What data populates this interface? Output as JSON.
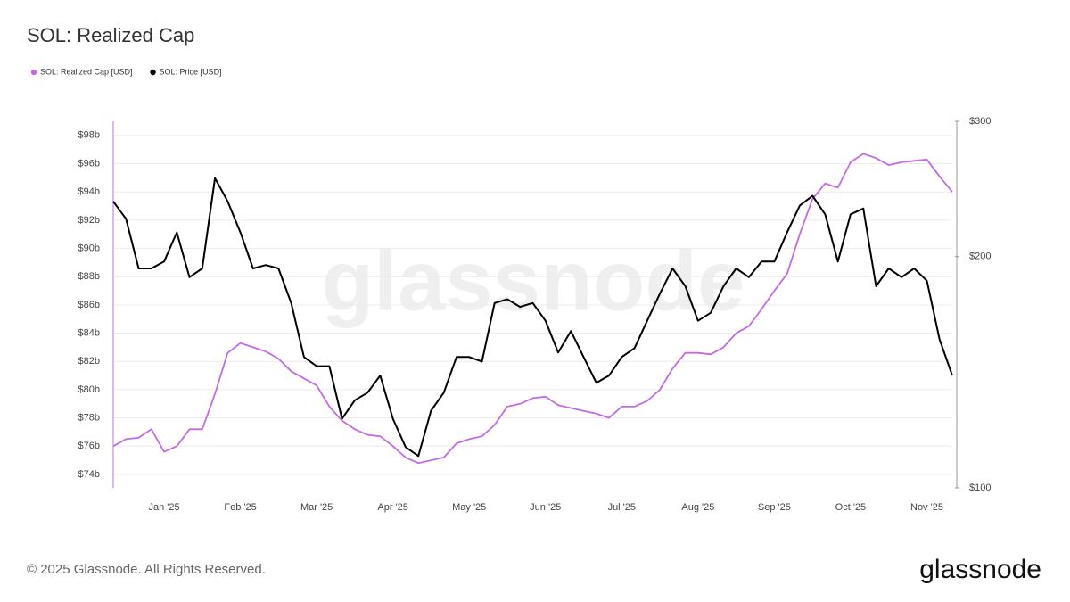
{
  "chart_data": {
    "type": "line",
    "title": "SOL: Realized Cap",
    "categories": [
      null,
      null,
      null,
      null,
      "Jan '25",
      null,
      null,
      null,
      null,
      null,
      "Feb '25",
      null,
      null,
      null,
      null,
      null,
      "Mar '25",
      null,
      null,
      null,
      null,
      null,
      "Apr '25",
      null,
      null,
      null,
      null,
      null,
      "May '25",
      null,
      null,
      null,
      null,
      null,
      "Jun '25",
      null,
      null,
      null,
      null,
      null,
      "Jul '25",
      null,
      null,
      null,
      null,
      null,
      "Aug '25",
      null,
      null,
      null,
      null,
      null,
      "Sep '25",
      null,
      null,
      null,
      null,
      null,
      "Oct '25",
      null,
      null,
      null,
      null,
      null,
      "Nov '25",
      null,
      null
    ],
    "series": [
      {
        "name": "SOL: Realized Cap [USD]",
        "color": "#c26be3",
        "axis": "y",
        "values": [
          76.0,
          76.5,
          76.6,
          77.2,
          75.6,
          76.0,
          77.2,
          77.2,
          79.7,
          82.6,
          83.3,
          83.0,
          82.7,
          82.2,
          81.3,
          80.8,
          80.3,
          78.8,
          77.8,
          77.2,
          76.8,
          76.7,
          76.0,
          75.2,
          74.8,
          75.0,
          75.2,
          76.2,
          76.5,
          76.7,
          77.5,
          78.8,
          79.0,
          79.4,
          79.5,
          78.9,
          78.7,
          78.5,
          78.3,
          78.0,
          78.8,
          78.8,
          79.2,
          80.0,
          81.5,
          82.6,
          82.6,
          82.5,
          83.0,
          84.0,
          84.5,
          85.7,
          87.0,
          88.2,
          91.0,
          93.5,
          94.6,
          94.3,
          96.1,
          96.7,
          96.4,
          95.9,
          96.1,
          96.2,
          96.3,
          95.1,
          94.0
        ]
      },
      {
        "name": "SOL: Price [USD]",
        "color": "#000000",
        "axis": "y2",
        "values": [
          236,
          224,
          193,
          193,
          197,
          215,
          188,
          193,
          253,
          236,
          215,
          193,
          195,
          193,
          174,
          148,
          144,
          144,
          123,
          130,
          133,
          140,
          123,
          113,
          110,
          126,
          133,
          148,
          148,
          146,
          174,
          176,
          172,
          174,
          165,
          150,
          160,
          148,
          137,
          140,
          148,
          152,
          165,
          179,
          193,
          183,
          165,
          169,
          183,
          193,
          188,
          197,
          197,
          215,
          233,
          240,
          227,
          197,
          227,
          231,
          183,
          193,
          188,
          193,
          186,
          156,
          140
        ]
      }
    ],
    "ylim": [
      73.05,
      99.0
    ],
    "yticks": [
      {
        "value": 74,
        "label": "$74b"
      },
      {
        "value": 76,
        "label": "$76b"
      },
      {
        "value": 78,
        "label": "$78b"
      },
      {
        "value": 80,
        "label": "$80b"
      },
      {
        "value": 82,
        "label": "$82b"
      },
      {
        "value": 84,
        "label": "$84b"
      },
      {
        "value": 86,
        "label": "$86b"
      },
      {
        "value": 88,
        "label": "$88b"
      },
      {
        "value": 90,
        "label": "$90b"
      },
      {
        "value": 92,
        "label": "$92b"
      },
      {
        "value": 94,
        "label": "$94b"
      },
      {
        "value": 96,
        "label": "$96b"
      },
      {
        "value": 98,
        "label": "$98b"
      }
    ],
    "y2lim": [
      100,
      300
    ],
    "y2ticks": [
      {
        "value": 100,
        "label": "$100"
      },
      {
        "value": 200,
        "label": "$200"
      },
      {
        "value": 300,
        "label": "$300"
      }
    ],
    "y2_log": true,
    "grid": true,
    "legend": "top-left",
    "watermark": "glassnode",
    "footer": "© 2025 Glassnode. All Rights Reserved.",
    "logo": "glassnode"
  }
}
